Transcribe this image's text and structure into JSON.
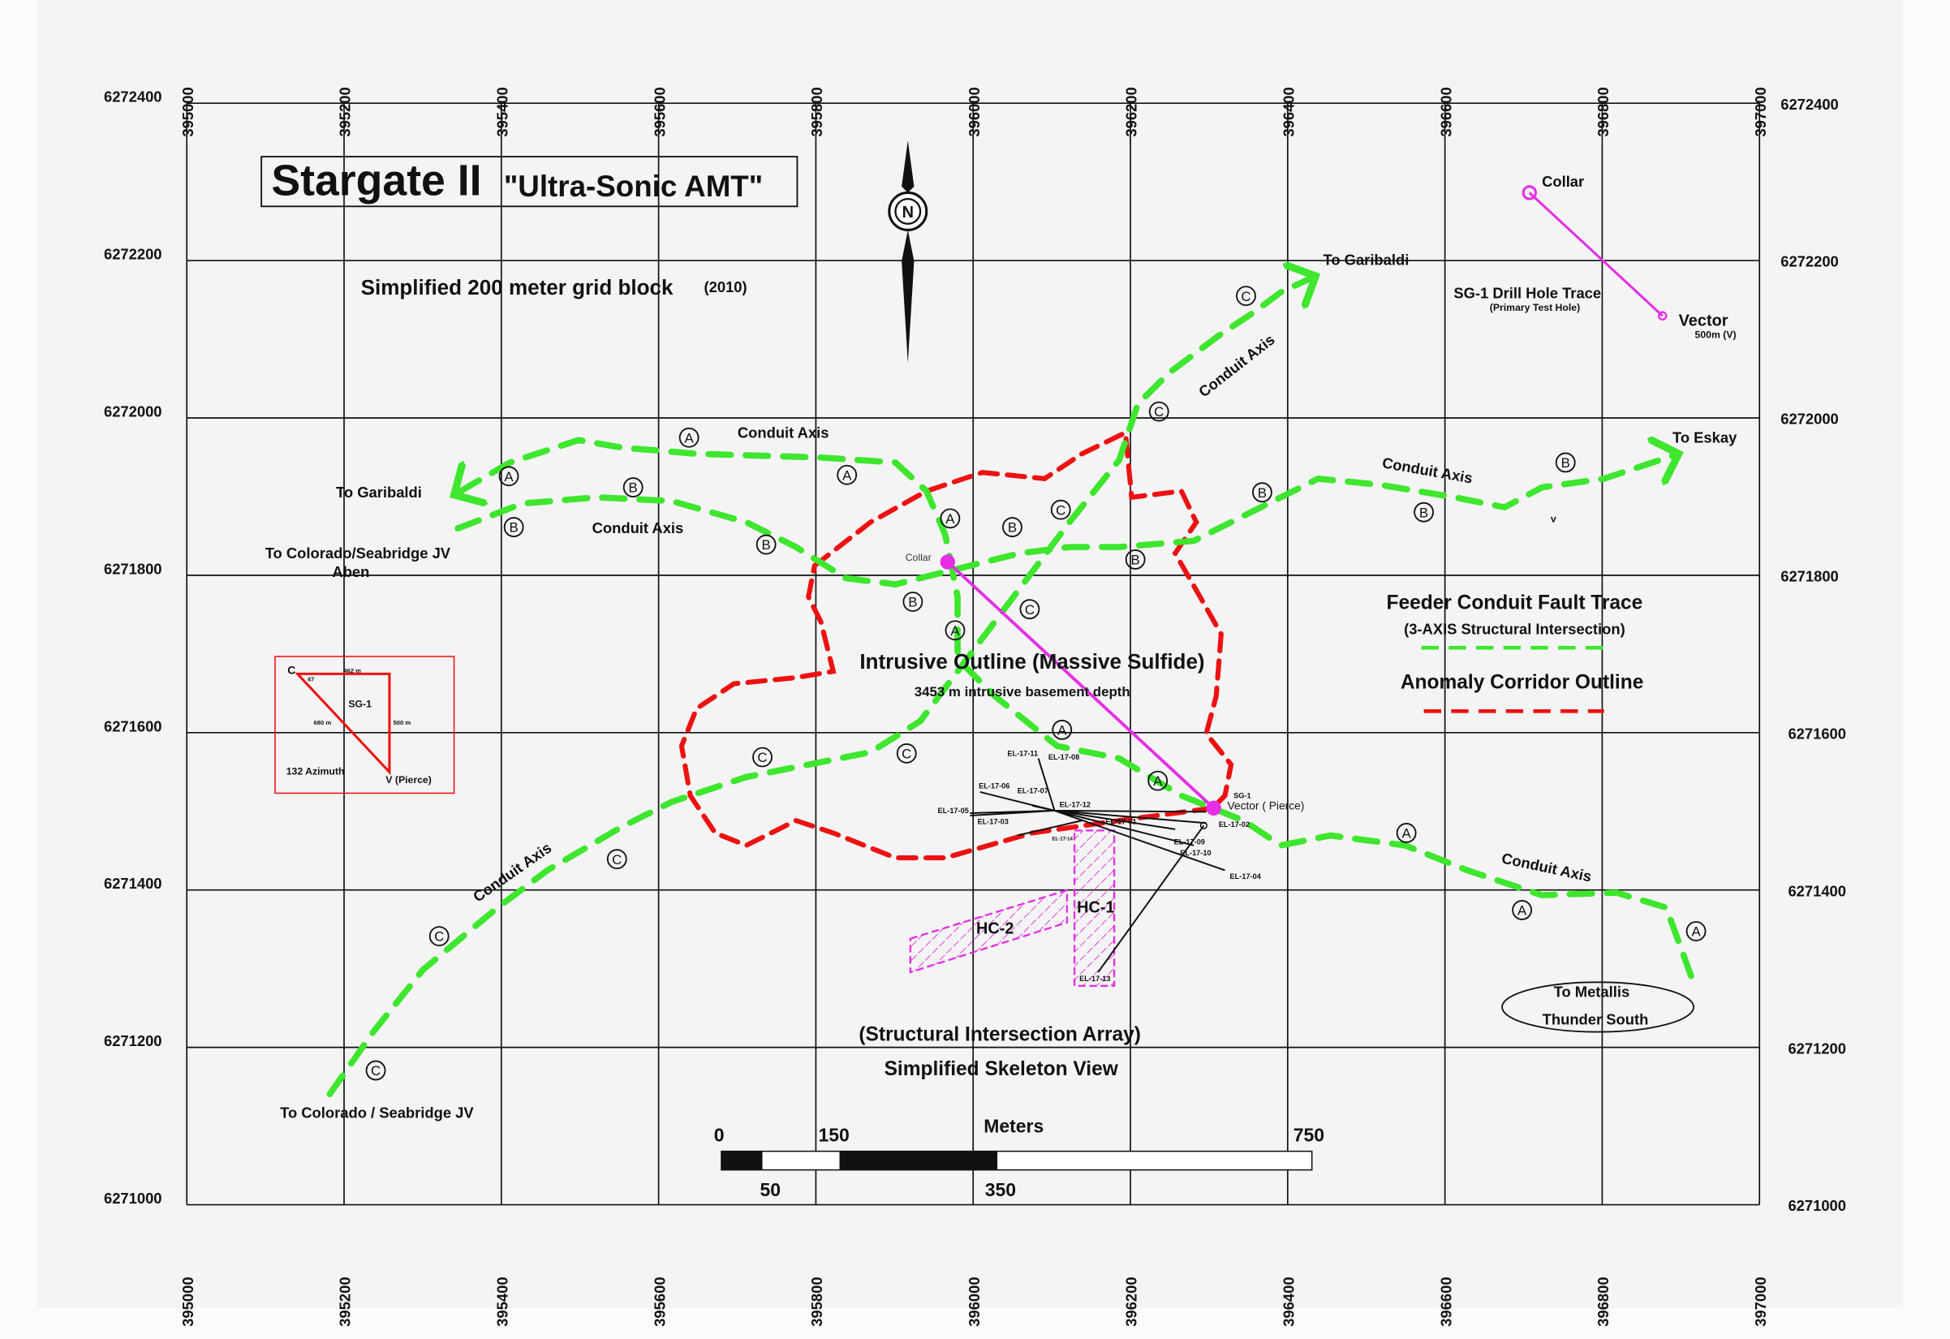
{
  "title": {
    "main": "Stargate II",
    "sub": "\"Ultra-Sonic AMT\""
  },
  "subtitle": "Simplified 200 meter grid block",
  "year": "(2010)",
  "axes": {
    "eastings": [
      "395000",
      "395200",
      "395400",
      "395600",
      "395800",
      "396000",
      "396200",
      "396400",
      "396600",
      "396800",
      "397000"
    ],
    "northings_left": [
      "6272400",
      "6272200",
      "6272000",
      "6271800",
      "6271600",
      "6271400",
      "6271200",
      "6271000"
    ],
    "northings_right": [
      "6272400",
      "6272200",
      "6272000",
      "6271800",
      "6271600",
      "6271400",
      "6271200",
      "6271000"
    ]
  },
  "north_label": "N",
  "labels": {
    "to_garibaldi_ne": "To Garibaldi",
    "to_garibaldi_w": "To Garibaldi",
    "to_colorado_jv": "To Colorado/Seabridge JV",
    "aben": "Aben",
    "to_eskay": "To Eskay",
    "to_colorado_sw": "To Colorado / Seabridge JV",
    "to_metallis_1": "To Metallis",
    "to_metallis_2": "Thunder South",
    "conduit_axis": "Conduit Axis",
    "intrusive": "Intrusive Outline (Massive Sulfide)",
    "depth": "3453 m intrusive basement depth",
    "collar_small": "Collar",
    "sg1_small": "SG-1",
    "vector_pierce": "Vector  ( Pierce)",
    "hc1": "HC-1",
    "hc2": "HC-2",
    "array": "(Structural Intersection Array)",
    "skeleton": "Simplified Skeleton View",
    "v_small": "v"
  },
  "drill_holes": [
    "EL-17-11",
    "EL-17-08",
    "EL-17-06",
    "EL-17-07",
    "EL-17-12",
    "EL-17-05",
    "EL-17-03",
    "EL-17-01",
    "EL-17-02",
    "EL-17-14",
    "EL-17-09",
    "EL-17-10",
    "EL-17-04",
    "EL-17-13"
  ],
  "drill_trace": {
    "title": "SG-1 Drill Hole Trace",
    "subtitle": "(Primary Test Hole)",
    "collar": "Collar",
    "vector": "Vector",
    "vector_sub": "500m  (V)"
  },
  "legend": {
    "feeder": "Feeder Conduit Fault Trace",
    "feeder_sub": "(3-AXIS Structural Intersection)",
    "anomaly": "Anomaly Corridor Outline"
  },
  "inset": {
    "c": "C",
    "angle": "47",
    "top": "462 m",
    "name": "SG-1",
    "hyp": "680 m",
    "side": "500 m",
    "azimuth": "132 Azimuth",
    "v": "V  (Pierce)"
  },
  "scale": {
    "l0": "0",
    "l150": "150",
    "meters": "Meters",
    "l750": "750",
    "l50": "50",
    "l350": "350"
  },
  "markers": [
    "A",
    "A",
    "A",
    "A",
    "A",
    "A",
    "A",
    "A",
    "A",
    "A",
    "B",
    "B",
    "B",
    "B",
    "B",
    "B",
    "B",
    "B",
    "B",
    "C",
    "C",
    "C",
    "C",
    "C",
    "C",
    "C",
    "C",
    "C"
  ],
  "colors": {
    "green": "#3ee62e",
    "red": "#e11111",
    "magenta": "#e52ee5",
    "background": "#f4f4f4"
  }
}
